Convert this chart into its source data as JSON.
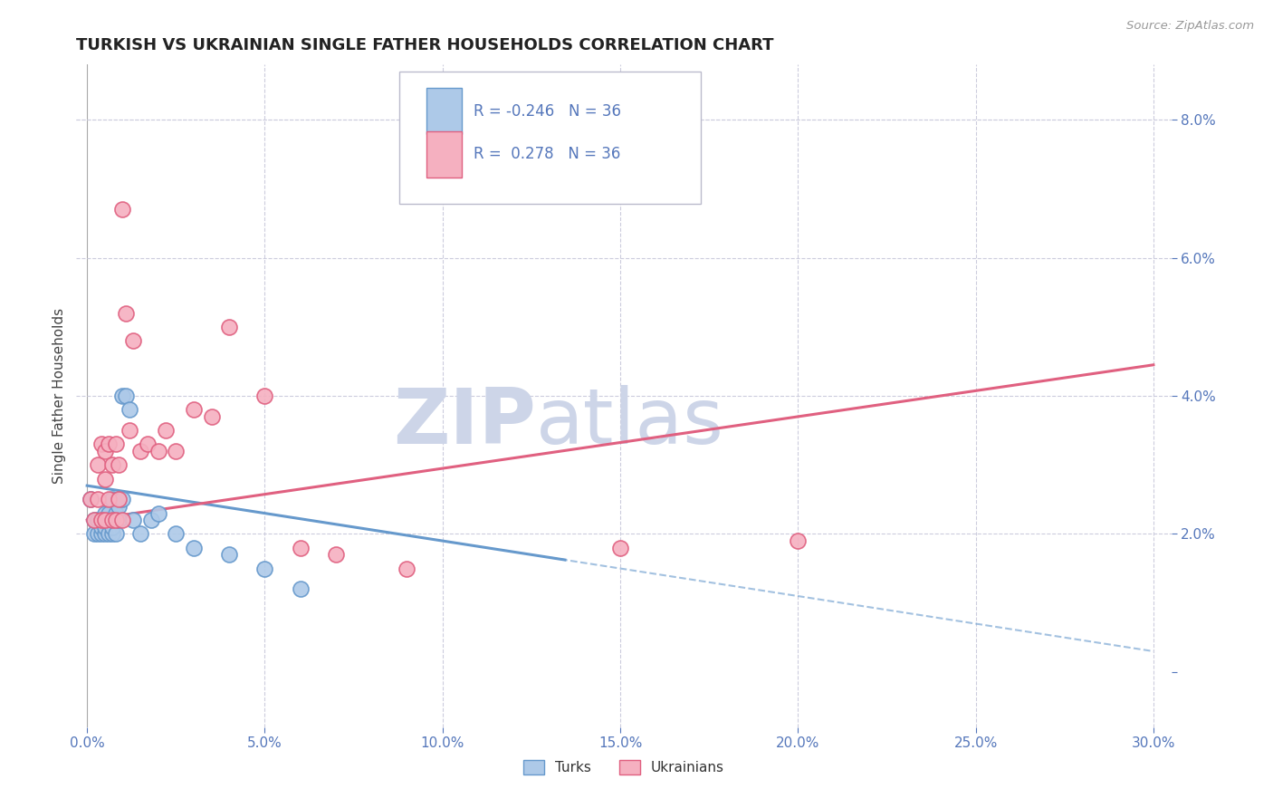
{
  "title": "TURKISH VS UKRAINIAN SINGLE FATHER HOUSEHOLDS CORRELATION CHART",
  "source": "Source: ZipAtlas.com",
  "ylabel": "Single Father Households",
  "xlim": [
    -0.003,
    0.305
  ],
  "ylim": [
    -0.008,
    0.088
  ],
  "turks_R": "-0.246",
  "turks_N": "36",
  "ukr_R": "0.278",
  "ukr_N": "36",
  "turks_color": "#adc9e8",
  "ukr_color": "#f5b0c0",
  "turks_line_color": "#6699cc",
  "ukr_line_color": "#e06080",
  "tick_color": "#5577bb",
  "title_color": "#222222",
  "turks_x": [
    0.001,
    0.002,
    0.002,
    0.003,
    0.003,
    0.004,
    0.004,
    0.004,
    0.005,
    0.005,
    0.005,
    0.005,
    0.006,
    0.006,
    0.006,
    0.007,
    0.007,
    0.007,
    0.007,
    0.008,
    0.008,
    0.009,
    0.009,
    0.01,
    0.01,
    0.011,
    0.012,
    0.013,
    0.015,
    0.018,
    0.02,
    0.025,
    0.03,
    0.04,
    0.05,
    0.06
  ],
  "turks_y": [
    0.025,
    0.02,
    0.022,
    0.02,
    0.022,
    0.02,
    0.021,
    0.022,
    0.02,
    0.021,
    0.022,
    0.023,
    0.02,
    0.022,
    0.023,
    0.02,
    0.021,
    0.022,
    0.025,
    0.02,
    0.023,
    0.022,
    0.024,
    0.025,
    0.04,
    0.04,
    0.038,
    0.022,
    0.02,
    0.022,
    0.023,
    0.02,
    0.018,
    0.017,
    0.015,
    0.012
  ],
  "ukr_x": [
    0.001,
    0.002,
    0.003,
    0.003,
    0.004,
    0.004,
    0.005,
    0.005,
    0.005,
    0.006,
    0.006,
    0.007,
    0.007,
    0.008,
    0.008,
    0.009,
    0.009,
    0.01,
    0.01,
    0.011,
    0.012,
    0.013,
    0.015,
    0.017,
    0.02,
    0.022,
    0.025,
    0.03,
    0.035,
    0.04,
    0.05,
    0.06,
    0.07,
    0.09,
    0.15,
    0.2
  ],
  "ukr_y": [
    0.025,
    0.022,
    0.025,
    0.03,
    0.022,
    0.033,
    0.022,
    0.028,
    0.032,
    0.025,
    0.033,
    0.022,
    0.03,
    0.022,
    0.033,
    0.025,
    0.03,
    0.022,
    0.067,
    0.052,
    0.035,
    0.048,
    0.032,
    0.033,
    0.032,
    0.035,
    0.032,
    0.038,
    0.037,
    0.05,
    0.04,
    0.018,
    0.017,
    0.015,
    0.018,
    0.019
  ],
  "background_color": "#ffffff",
  "grid_color": "#ccccdd",
  "watermark_zip": "ZIP",
  "watermark_atlas": "atlas",
  "watermark_color": "#cdd5e8"
}
